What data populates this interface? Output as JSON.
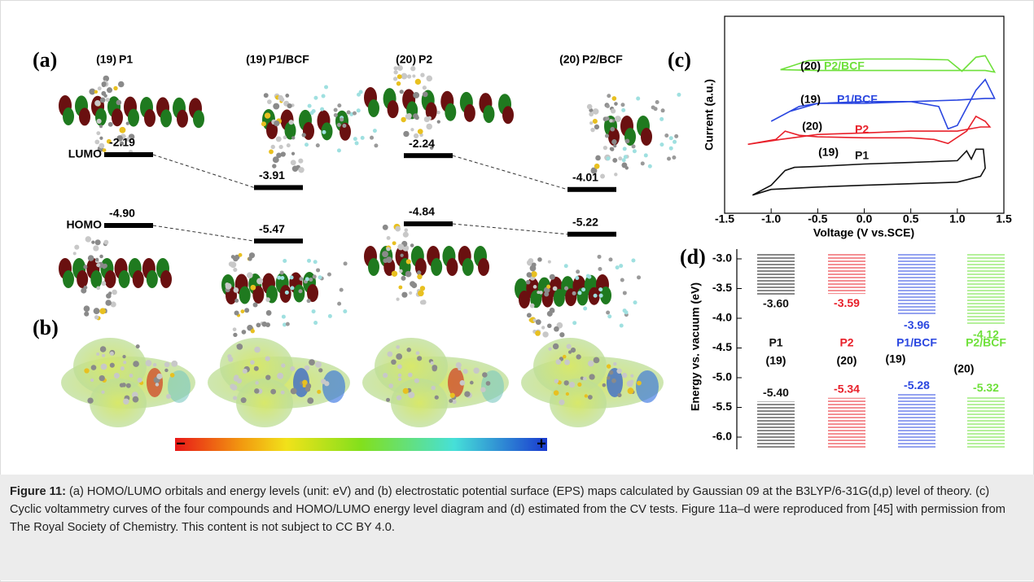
{
  "panel_a": {
    "label": "(a)",
    "level_labels": {
      "lumo": "LUMO",
      "homo": "HOMO"
    },
    "compounds": [
      {
        "ref": "(19)",
        "name": "P1",
        "lumo": -2.19,
        "homo": {
          "value": -4.9,
          "label": "-4.90"
        }
      },
      {
        "ref": "(19)",
        "name": "P1/BCF",
        "lumo": -3.91,
        "homo": -5.47
      },
      {
        "ref": "(20)",
        "name": "P2",
        "lumo": -2.24,
        "homo": -4.84
      },
      {
        "ref": "(20)",
        "name": "P2/BCF",
        "lumo": -4.01,
        "homo": -5.22
      }
    ]
  },
  "panel_b": {
    "label": "(b)",
    "colorbar": {
      "min_label": "−",
      "max_label": "+"
    }
  },
  "panel_c": {
    "label": "(c)",
    "type": "line",
    "xlabel": "Voltage (V vs.SCE)",
    "ylabel": "Current (a.u.)",
    "xlim": [
      -1.5,
      1.5
    ],
    "ylim": [
      0,
      10
    ],
    "xticks": [
      -1.5,
      {
        "value": -1.0,
        "label": "-1.0"
      },
      -0.5,
      {
        "value": 0.0,
        "label": "0.0"
      },
      0.5,
      {
        "value": 1.0,
        "label": "1.0"
      },
      1.5
    ],
    "series": [
      {
        "ref": "(20)",
        "name": "P2/BCF",
        "color": "#6ee03a",
        "x": [
          -0.9,
          -0.6,
          0,
          0.5,
          0.9,
          1.05,
          1.2,
          1.3,
          1.4,
          1.3,
          1.0,
          0.5,
          0,
          -0.5,
          -0.9
        ],
        "values": [
          7.29,
          7.75,
          7.83,
          7.83,
          7.79,
          7.21,
          7.92,
          8.0,
          7.17,
          7.25,
          7.25,
          7.25,
          7.25,
          7.25,
          7.29
        ]
      },
      {
        "ref": "(19)",
        "name": "P1/BCF",
        "color": "#2b47e0",
        "x": [
          -1.0,
          -0.7,
          -0.5,
          0,
          0.5,
          0.8,
          0.9,
          1.0,
          1.2,
          1.3,
          1.4,
          1.3,
          1.0,
          0.5,
          0,
          -0.5,
          -0.8,
          -1.0
        ],
        "values": [
          4.67,
          5.42,
          5.58,
          5.58,
          5.67,
          5.42,
          4.29,
          4.46,
          6.25,
          6.79,
          5.83,
          5.83,
          5.75,
          5.67,
          5.67,
          5.58,
          5.17,
          4.67
        ]
      },
      {
        "ref": "(20)",
        "name": "P2",
        "color": "#e8202a",
        "x": [
          -1.25,
          -0.95,
          -0.85,
          -0.7,
          -0.5,
          0,
          0.5,
          0.75,
          0.9,
          1.1,
          1.2,
          1.3,
          1.35,
          1.25,
          1.0,
          0.5,
          0,
          -0.5,
          -0.9,
          -1.25
        ],
        "values": [
          3.5,
          3.75,
          4.17,
          3.96,
          3.88,
          3.83,
          3.83,
          3.75,
          3.54,
          4.17,
          4.92,
          4.67,
          4.38,
          4.38,
          4.17,
          4.17,
          4.08,
          4.0,
          3.75,
          3.5
        ]
      },
      {
        "ref": "(19)",
        "name": "P1",
        "color": "#111111",
        "x": [
          -1.2,
          -1.0,
          -0.85,
          -0.75,
          -0.5,
          0,
          0.5,
          1.0,
          1.1,
          1.15,
          1.2,
          1.28,
          1.3,
          1.25,
          1.0,
          0.5,
          0,
          -0.5,
          -1.0,
          -1.2
        ],
        "values": [
          0.92,
          1.42,
          2.17,
          2.33,
          2.38,
          2.5,
          2.58,
          2.67,
          3.17,
          2.75,
          3.25,
          3.25,
          2.29,
          1.88,
          1.58,
          1.5,
          1.42,
          1.33,
          1.21,
          0.92
        ]
      }
    ]
  },
  "panel_d": {
    "label": "(d)",
    "type": "energy-levels",
    "ylabel": "Energy vs. vacuum (eV)",
    "ylim": [
      -6.2,
      -2.9
    ],
    "yticks": [
      {
        "value": -3.0,
        "label": "-3.0"
      },
      -3.5,
      {
        "value": -4.0,
        "label": "-4.0"
      },
      -4.5,
      {
        "value": -5.0,
        "label": "-5.0"
      },
      -5.5,
      {
        "value": -6.0,
        "label": "-6.0"
      }
    ],
    "series": [
      {
        "ref": "(19)",
        "name": "P1",
        "color": "#111111",
        "lumo": {
          "value": -3.6,
          "label": "-3.60"
        },
        "homo": {
          "value": -5.4,
          "label": "-5.40"
        }
      },
      {
        "ref": "(20)",
        "name": "P2",
        "color": "#e8202a",
        "lumo": -3.59,
        "homo": -5.34
      },
      {
        "ref": "(19)",
        "name": "P1/BCF",
        "color": "#2b47e0",
        "lumo": -3.96,
        "homo": -5.28
      },
      {
        "ref": "(20)",
        "name": "P2/BCF",
        "color": "#6ee03a",
        "lumo": -4.12,
        "homo": -5.32
      }
    ]
  },
  "caption": {
    "label": "Figure 11:",
    "text": "(a) HOMO/LUMO orbitals and energy levels (unit: eV) and (b) electrostatic potential surface (EPS) maps calculated by Gaussian 09 at the B3LYP/6-31G(d,p) level of theory. (c) Cyclic voltammetry curves of the four compounds and HOMO/LUMO energy level diagram and (d) estimated from the CV tests. Figure 11a–d were reproduced from [45] with permission from The Royal Society of Chemistry. This content is not subject to CC BY 4.0."
  }
}
